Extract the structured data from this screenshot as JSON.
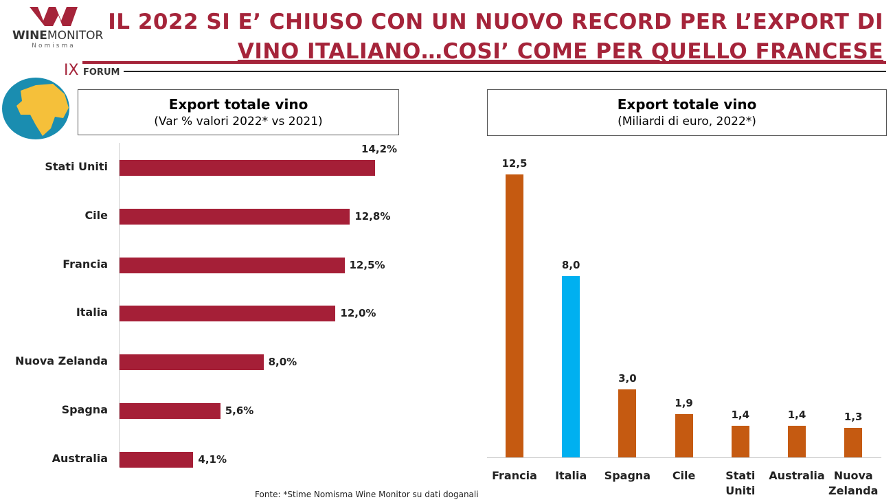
{
  "header": {
    "title_line1": "IL 2022 SI E’ CHIUSO CON UN NUOVO RECORD PER L’EXPORT DI",
    "title_line2": "VINO ITALIANO…COSI’ COME PER QUELLO FRANCESE",
    "logo": {
      "brand_bold": "WINE",
      "brand_light": "MONITOR",
      "sub": "Nomisma"
    },
    "forum_numeral": "IX",
    "forum_label": "FORUM",
    "accent": "#a5243a"
  },
  "chart_data": [
    {
      "type": "bar",
      "orientation": "horizontal",
      "title": "Export totale vino",
      "subtitle": "(Var % valori 2022* vs 2021)",
      "categories": [
        "Stati Uniti",
        "Cile",
        "Francia",
        "Italia",
        "Nuova Zelanda",
        "Spagna",
        "Australia"
      ],
      "values": [
        14.2,
        12.8,
        12.5,
        12.0,
        8.0,
        5.6,
        4.1
      ],
      "labels": [
        "14,2%",
        "12,8%",
        "12,5%",
        "12,0%",
        "8,0%",
        "5,6%",
        "4,1%"
      ],
      "color": "#a51f37",
      "xlim": [
        0,
        15
      ],
      "grid": false
    },
    {
      "type": "bar",
      "orientation": "vertical",
      "title": "Export totale vino",
      "subtitle": "(Miliardi di euro, 2022*)",
      "categories": [
        "Francia",
        "Italia",
        "Spagna",
        "Cile",
        "Stati Uniti",
        "Australia",
        "Nuova Zelanda"
      ],
      "values": [
        12.5,
        8.0,
        3.0,
        1.9,
        1.4,
        1.4,
        1.3
      ],
      "labels": [
        "12,5",
        "8,0",
        "3,0",
        "1,9",
        "1,4",
        "1,4",
        "1,3"
      ],
      "colors": [
        "#c55a11",
        "#00b0f0",
        "#c55a11",
        "#c55a11",
        "#c55a11",
        "#c55a11",
        "#c55a11"
      ],
      "ylim": [
        0,
        13
      ],
      "grid": false
    }
  ],
  "footer": {
    "source": "Fonte: *Stime Nomisma Wine Monitor su dati doganali"
  }
}
